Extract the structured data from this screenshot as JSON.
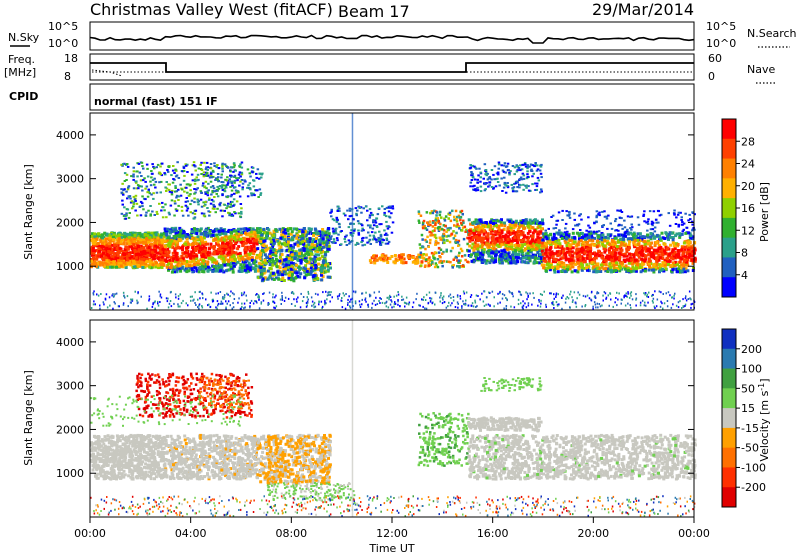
{
  "header": {
    "station": "Christmas Valley West (fitACF)",
    "beam": "Beam 17",
    "date": "29/Mar/2014"
  },
  "top_panels": {
    "nsky_label": "N.Sky",
    "nsearch_label": "N.Search",
    "noise_ticks": [
      "10^5",
      "10^0"
    ],
    "freq_label_1": "Freq.",
    "freq_label_2": "[MHz]",
    "freq_ticks": [
      "18",
      "8"
    ],
    "nave_label": "Nave",
    "nave_ticks": [
      "60",
      "0"
    ],
    "cpid_label": "CPID",
    "cpid_text": "normal (fast) 151 IF"
  },
  "chart_data": [
    {
      "type": "heatmap",
      "name": "power",
      "ylabel": "Slant Range [km]",
      "yticks": [
        "4000",
        "3000",
        "2000",
        "1000"
      ],
      "colorbar": {
        "label": "Power [dB]",
        "ticks": [
          "28",
          "24",
          "20",
          "16",
          "12",
          "8",
          "4"
        ],
        "colors": [
          "#ff0000",
          "#ff4000",
          "#ff8000",
          "#ffb000",
          "#8fd000",
          "#30b030",
          "#2aa08a",
          "#2060c0",
          "#0000ff"
        ]
      },
      "range_km": [
        0,
        4500
      ]
    },
    {
      "type": "heatmap",
      "name": "velocity",
      "ylabel": "Slant Range [km]",
      "yticks": [
        "4000",
        "3000",
        "2000",
        "1000"
      ],
      "colorbar": {
        "label": "Velocity [m s",
        "label_sup": "-1",
        "label_end": "]",
        "ticks": [
          "200",
          "100",
          "50",
          "15",
          "-15",
          "-50",
          "-100",
          "-200"
        ],
        "colors": [
          "#1030c0",
          "#2a7ab0",
          "#40a040",
          "#70d050",
          "#c8c8c0",
          "#ffa000",
          "#ff7000",
          "#ff3000",
          "#e00000"
        ]
      },
      "range_km": [
        0,
        4500
      ]
    }
  ],
  "xaxis": {
    "ticks": [
      "00:00",
      "04:00",
      "08:00",
      "12:00",
      "16:00",
      "20:00",
      "00:00"
    ],
    "label": "Time UT"
  }
}
